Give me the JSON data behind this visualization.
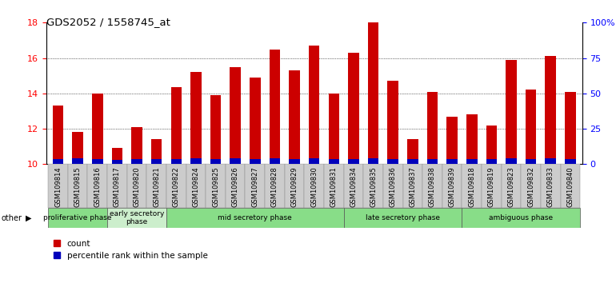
{
  "title": "GDS2052 / 1558745_at",
  "samples": [
    "GSM109814",
    "GSM109815",
    "GSM109816",
    "GSM109817",
    "GSM109820",
    "GSM109821",
    "GSM109822",
    "GSM109824",
    "GSM109825",
    "GSM109826",
    "GSM109827",
    "GSM109828",
    "GSM109829",
    "GSM109830",
    "GSM109831",
    "GSM109834",
    "GSM109835",
    "GSM109836",
    "GSM109837",
    "GSM109838",
    "GSM109839",
    "GSM109818",
    "GSM109819",
    "GSM109823",
    "GSM109832",
    "GSM109833",
    "GSM109840"
  ],
  "count_values": [
    13.3,
    11.8,
    14.0,
    10.9,
    12.1,
    11.4,
    14.35,
    15.2,
    13.9,
    15.5,
    14.9,
    16.5,
    15.3,
    16.7,
    14.0,
    16.3,
    18.0,
    14.7,
    11.4,
    14.1,
    12.7,
    12.8,
    12.2,
    15.9,
    14.2,
    16.1,
    14.1
  ],
  "percentile_values": [
    0.28,
    0.32,
    0.28,
    0.24,
    0.28,
    0.28,
    0.28,
    0.35,
    0.28,
    0.35,
    0.3,
    0.35,
    0.3,
    0.35,
    0.28,
    0.3,
    0.35,
    0.3,
    0.28,
    0.3,
    0.3,
    0.3,
    0.28,
    0.35,
    0.3,
    0.35,
    0.3
  ],
  "bar_bottom": 10.0,
  "ylim_left": [
    10,
    18
  ],
  "ylim_right": [
    0,
    100
  ],
  "yticks_left": [
    10,
    12,
    14,
    16,
    18
  ],
  "yticks_right": [
    0,
    25,
    50,
    75,
    100
  ],
  "ytick_labels_right": [
    "0",
    "25",
    "50",
    "75",
    "100%"
  ],
  "color_red": "#cc0000",
  "color_blue": "#0000bb",
  "phase_groups": [
    {
      "label": "proliferative phase",
      "start": 0,
      "end": 3,
      "color": "#88dd88"
    },
    {
      "label": "early secretory\nphase",
      "start": 3,
      "end": 6,
      "color": "#cceecc"
    },
    {
      "label": "mid secretory phase",
      "start": 6,
      "end": 15,
      "color": "#88dd88"
    },
    {
      "label": "late secretory phase",
      "start": 15,
      "end": 21,
      "color": "#88dd88"
    },
    {
      "label": "ambiguous phase",
      "start": 21,
      "end": 27,
      "color": "#88dd88"
    }
  ],
  "other_label": "other",
  "legend_count": "count",
  "legend_percentile": "percentile rank within the sample",
  "tick_bg_color": "#cccccc",
  "ax_bg_color": "#ffffff"
}
